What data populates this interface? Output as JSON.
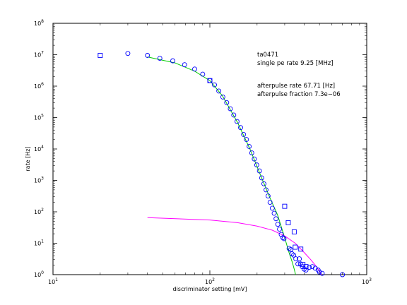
{
  "chart_data": {
    "type": "scatter",
    "xscale": "log",
    "yscale": "log",
    "xlim": [
      10,
      1000
    ],
    "ylim": [
      1,
      100000000
    ],
    "xlabel": "discriminator setting [mV]",
    "ylabel": "rate [Hz]",
    "grid": false,
    "annotations": [
      "ta0471",
      "single pe rate 9.25 [MHz]",
      "afterpulse rate 67.71 [Hz]",
      "afterpulse fraction 7.3e−06"
    ],
    "x_ticks": [
      {
        "value": 10,
        "base": "10",
        "exp": "1"
      },
      {
        "value": 100,
        "base": "10",
        "exp": "2"
      },
      {
        "value": 1000,
        "base": "10",
        "exp": "3"
      }
    ],
    "y_ticks": [
      {
        "value": 1,
        "base": "10",
        "exp": "0"
      },
      {
        "value": 10,
        "base": "10",
        "exp": "1"
      },
      {
        "value": 100,
        "base": "10",
        "exp": "2"
      },
      {
        "value": 1000,
        "base": "10",
        "exp": "3"
      },
      {
        "value": 10000,
        "base": "10",
        "exp": "4"
      },
      {
        "value": 100000,
        "base": "10",
        "exp": "5"
      },
      {
        "value": 1000000,
        "base": "10",
        "exp": "6"
      },
      {
        "value": 10000000,
        "base": "10",
        "exp": "7"
      },
      {
        "value": 100000000,
        "base": "10",
        "exp": "8"
      }
    ],
    "colors": {
      "circles": "#0000ff",
      "squares": "#0000ff",
      "green_fit": "#00cc00",
      "magenta_fit": "#ff00ff"
    },
    "series": [
      {
        "marker": "circle",
        "x": [
          30,
          40,
          48,
          58,
          69,
          80,
          90,
          100,
          107,
          114,
          121,
          128,
          135,
          142,
          149,
          157,
          164,
          171,
          178,
          185,
          192,
          199,
          207,
          214,
          221,
          228,
          235,
          242,
          250,
          257,
          264,
          271,
          278,
          285,
          292,
          297,
          320,
          328,
          334,
          342,
          353,
          364,
          372,
          378,
          388,
          399,
          410,
          430,
          450,
          470,
          490,
          500,
          520,
          700
        ],
        "y": [
          11000000,
          9500000,
          7700000,
          6400000,
          4800000,
          3500000,
          2400000,
          1500000,
          1100000,
          700000,
          450000,
          300000,
          190000,
          120000,
          75000,
          48000,
          29000,
          20000,
          12000,
          7500,
          4800,
          3100,
          2000,
          1200,
          780,
          500,
          320,
          200,
          130,
          90,
          60,
          40,
          28,
          19,
          15,
          14,
          6.8,
          6.3,
          4.6,
          4.2,
          3.2,
          2.2,
          3.2,
          2.2,
          1.8,
          1.5,
          1.4,
          1.7,
          1.8,
          1.6,
          1.4,
          1.2,
          1.1,
          1
        ]
      },
      {
        "marker": "square",
        "x": [
          20,
          100,
          300,
          316,
          345,
          350,
          380,
          392,
          410
        ],
        "y": [
          9500000,
          1500000,
          150,
          45,
          23,
          7.5,
          6.5,
          2.1,
          1.8
        ]
      },
      {
        "line": "green",
        "x": [
          40,
          60,
          80,
          100,
          120,
          150,
          180,
          210,
          240,
          270,
          300,
          320,
          335,
          345,
          352
        ],
        "y": [
          8500000,
          5500000,
          3000000,
          1500000,
          500000,
          70000,
          10000,
          1500,
          300,
          80,
          15,
          5,
          2.5,
          1.5,
          1
        ]
      },
      {
        "line": "magenta",
        "x": [
          40,
          100,
          150,
          200,
          250,
          300,
          350,
          400,
          440,
          470,
          500,
          512
        ],
        "y": [
          65,
          55,
          45,
          35,
          26,
          17,
          10,
          5,
          3,
          2,
          1.3,
          1
        ]
      }
    ]
  }
}
